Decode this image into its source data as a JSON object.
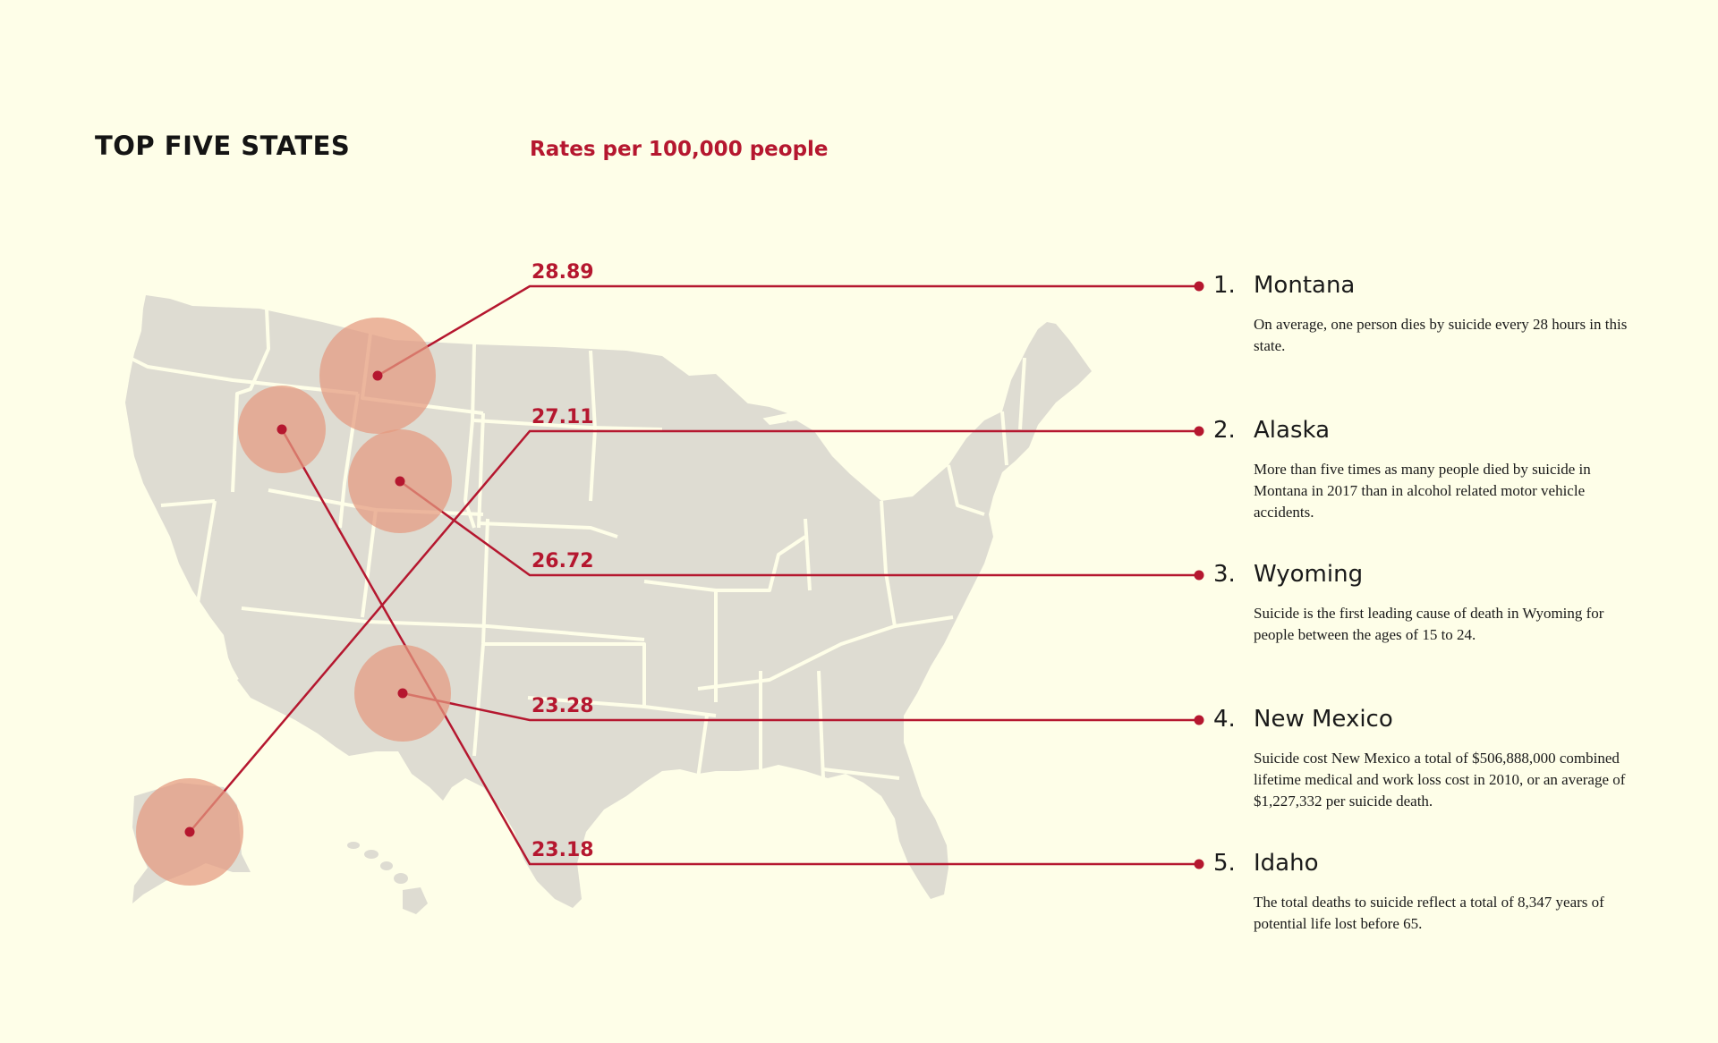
{
  "title": "TOP FIVE STATES",
  "subtitle": "Rates per 100,000 people",
  "colors": {
    "background": "#fefee8",
    "accent": "#b5172f",
    "map_fill": "#dedcd2",
    "bubble_fill": "#e49a80"
  },
  "states": [
    {
      "rank": "1.",
      "name": "Montana",
      "rate": "28.89",
      "description": "On average, one person dies by suicide every 28 hours in this state."
    },
    {
      "rank": "2.",
      "name": "Alaska",
      "rate": "27.11",
      "description": "More than five times as many people died by suicide in Montana in 2017 than in alcohol related motor vehicle accidents."
    },
    {
      "rank": "3.",
      "name": "Wyoming",
      "rate": "26.72",
      "description": "Suicide is the first leading cause of death in Wyoming for people between the ages of 15 to 24."
    },
    {
      "rank": "4.",
      "name": "New Mexico",
      "rate": "23.28",
      "description": "Suicide cost New Mexico a total of $506,888,000 combined lifetime medical and work loss cost in 2010, or an average of $1,227,332 per suicide death."
    },
    {
      "rank": "5.",
      "name": "Idaho",
      "rate": "23.18",
      "description": "The total deaths to suicide reflect a total of 8,347 years of potential life lost before 65."
    }
  ]
}
